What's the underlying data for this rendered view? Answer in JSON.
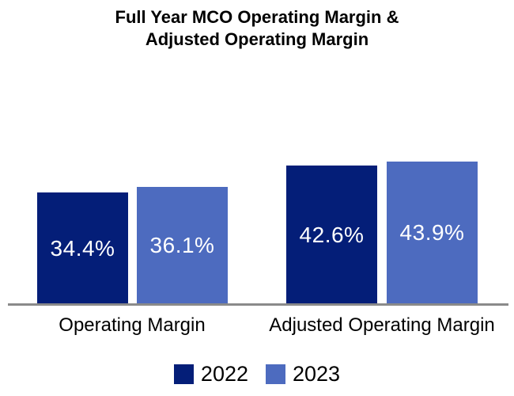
{
  "chart_data": {
    "type": "bar",
    "title": "Full Year MCO Operating Margin & Adjusted Operating Margin",
    "title_lines": [
      "Full Year MCO Operating Margin &",
      "Adjusted Operating Margin"
    ],
    "categories": [
      "Operating Margin",
      "Adjusted Operating Margin"
    ],
    "series": [
      {
        "name": "2022",
        "color": "#041E78",
        "values": [
          34.4,
          42.6
        ],
        "labels": [
          "34.4%",
          "42.6%"
        ]
      },
      {
        "name": "2023",
        "color": "#4D6BBF",
        "values": [
          36.1,
          43.9
        ],
        "labels": [
          "36.1%",
          "43.9%"
        ]
      }
    ],
    "value_suffix": "%",
    "value_labels_position": "inside-center",
    "value_label_color": "#ffffff",
    "axis_line_color": "#8a8a8a",
    "grid": false,
    "y_axis_visible": false,
    "legend_position": "bottom-center"
  }
}
